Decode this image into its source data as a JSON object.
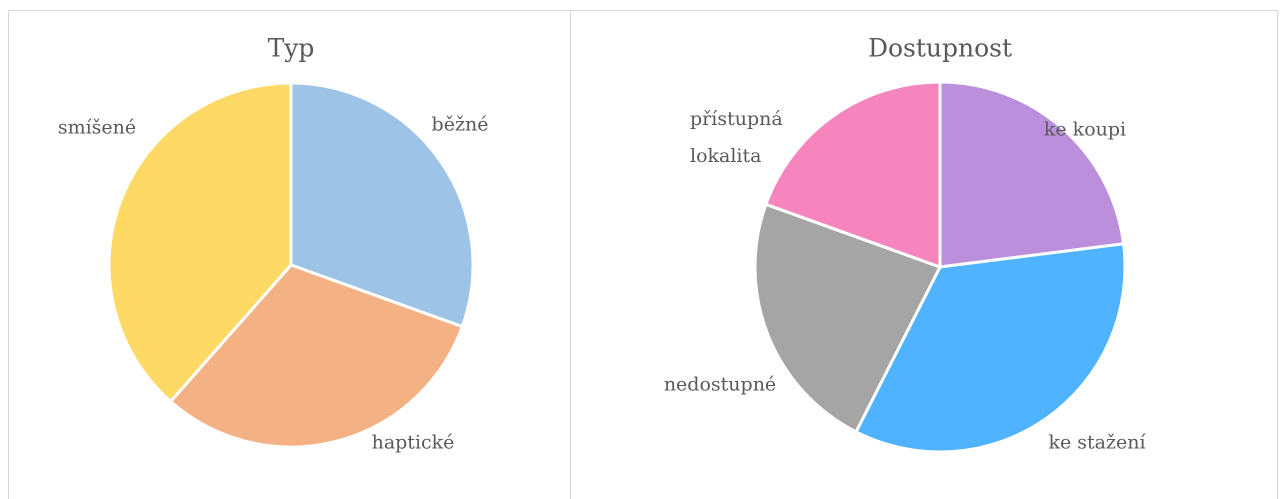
{
  "chart_data": [
    {
      "type": "pie",
      "title": "Typ",
      "categories": [
        "běžné",
        "haptické",
        "smíšené"
      ],
      "values": [
        30.5,
        31,
        38.5
      ],
      "colors": [
        "#9dc3e6",
        "#f4b183",
        "#ffd966"
      ]
    },
    {
      "type": "pie",
      "title": "Dostupnost",
      "categories": [
        "ke koupi",
        "ke stažení",
        "nedostupné",
        "přístupná lokalita"
      ],
      "values": [
        23,
        34.5,
        23,
        19.5
      ],
      "colors": [
        "#bc8fdd",
        "#4fb3ff",
        "#a5a5a5",
        "#f785bd"
      ]
    }
  ]
}
